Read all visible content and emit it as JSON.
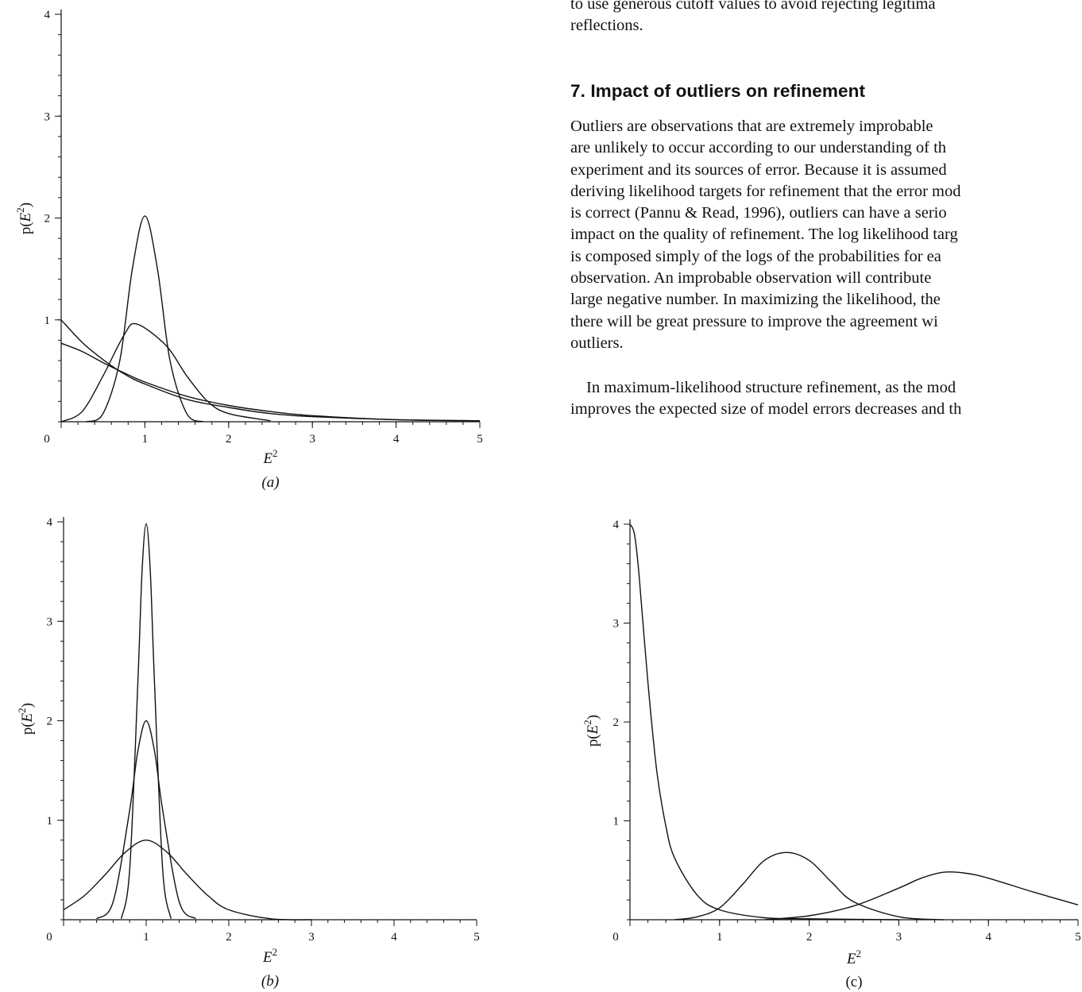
{
  "article": {
    "fragment_lines": [
      "to use generous cutoff values to avoid rejecting legitima",
      "reflections."
    ],
    "section_heading": "7. Impact of outliers on refinement",
    "paragraph1_lines": [
      "Outliers are observations that are extremely improbable",
      "are unlikely to occur according to our understanding of th",
      "experiment and its sources of error. Because it is assumed",
      "deriving likelihood targets for refinement that the error mod",
      "is correct (Pannu & Read, 1996), outliers can have a serio",
      "impact on the quality of refinement. The log likelihood targ",
      "is composed simply of the logs of the probabilities for ea",
      "observation. An improbable observation will contribute",
      "large negative number. In maximizing the likelihood, the",
      "there will be great pressure to improve the agreement wi",
      "outliers."
    ],
    "paragraph2_lines": [
      "In maximum-likelihood structure refinement, as the mod",
      "improves the expected size of model errors decreases and th"
    ]
  },
  "chart_data": [
    {
      "panel": "(a)",
      "type": "line",
      "xlabel": "E²",
      "ylabel": "p(E²)",
      "xlim": [
        0,
        5
      ],
      "ylim": [
        0,
        4
      ],
      "x_ticks": [
        0,
        1,
        2,
        3,
        4,
        5
      ],
      "y_ticks": [
        1,
        2,
        3,
        4
      ],
      "series": [
        {
          "x": [
            0,
            0.25,
            0.5,
            0.75,
            1,
            1.5,
            2,
            2.5,
            3,
            4,
            5
          ],
          "y": [
            1,
            0.78,
            0.61,
            0.47,
            0.37,
            0.22,
            0.14,
            0.08,
            0.05,
            0.02,
            0.01
          ]
        },
        {
          "x": [
            0,
            0.25,
            0.5,
            0.75,
            1,
            1.5,
            2,
            2.5,
            3,
            4,
            5
          ],
          "y": [
            0.77,
            0.69,
            0.58,
            0.48,
            0.39,
            0.25,
            0.16,
            0.1,
            0.06,
            0.02,
            0.01
          ]
        },
        {
          "x": [
            0,
            0.25,
            0.5,
            0.75,
            0.9,
            1.25,
            1.5,
            1.75,
            2,
            2.5
          ],
          "y": [
            0,
            0.1,
            0.45,
            0.85,
            0.96,
            0.75,
            0.45,
            0.2,
            0.08,
            0.01
          ]
        },
        {
          "x": [
            0.3,
            0.5,
            0.7,
            0.85,
            1,
            1.15,
            1.3,
            1.5,
            1.7
          ],
          "y": [
            0,
            0.08,
            0.6,
            1.5,
            2.02,
            1.5,
            0.6,
            0.08,
            0
          ]
        }
      ]
    },
    {
      "panel": "(b)",
      "type": "line",
      "xlabel": "E²",
      "ylabel": "p(E²)",
      "xlim": [
        0,
        5
      ],
      "ylim": [
        0,
        4
      ],
      "x_ticks": [
        0,
        1,
        2,
        3,
        4,
        5
      ],
      "y_ticks": [
        1,
        2,
        3,
        4
      ],
      "series": [
        {
          "x": [
            0,
            0.25,
            0.5,
            0.75,
            1,
            1.25,
            1.5,
            1.75,
            2,
            2.5,
            3
          ],
          "y": [
            0.1,
            0.24,
            0.45,
            0.68,
            0.8,
            0.68,
            0.45,
            0.24,
            0.1,
            0.01,
            0
          ]
        },
        {
          "x": [
            0.4,
            0.6,
            0.8,
            0.9,
            1,
            1.1,
            1.2,
            1.4,
            1.6
          ],
          "y": [
            0.01,
            0.18,
            1.1,
            1.7,
            2,
            1.7,
            1.1,
            0.18,
            0.01
          ]
        },
        {
          "x": [
            0.7,
            0.8,
            0.9,
            0.95,
            1,
            1.05,
            1.1,
            1.2,
            1.3
          ],
          "y": [
            0.01,
            0.5,
            2.4,
            3.5,
            3.98,
            3.5,
            2.4,
            0.5,
            0.01
          ]
        }
      ]
    },
    {
      "panel": "(c)",
      "type": "line",
      "xlabel": "E²",
      "ylabel": "p(E²)",
      "xlim": [
        0,
        5
      ],
      "ylim": [
        0,
        4
      ],
      "x_ticks": [
        0,
        1,
        2,
        3,
        4,
        5
      ],
      "y_ticks": [
        1,
        2,
        3,
        4
      ],
      "series": [
        {
          "x": [
            0,
            0.05,
            0.1,
            0.2,
            0.3,
            0.4,
            0.5,
            0.75,
            1,
            1.5,
            2,
            3
          ],
          "y": [
            4,
            3.9,
            3.5,
            2.4,
            1.5,
            0.95,
            0.62,
            0.25,
            0.1,
            0.02,
            0.01,
            0
          ]
        },
        {
          "x": [
            0.5,
            0.75,
            1,
            1.25,
            1.5,
            1.75,
            2,
            2.25,
            2.5,
            3,
            3.5
          ],
          "y": [
            0,
            0.03,
            0.12,
            0.35,
            0.6,
            0.68,
            0.6,
            0.38,
            0.18,
            0.03,
            0
          ]
        },
        {
          "x": [
            1.5,
            2,
            2.5,
            3,
            3.25,
            3.5,
            3.75,
            4,
            4.5,
            5
          ],
          "y": [
            0,
            0.04,
            0.14,
            0.32,
            0.42,
            0.48,
            0.47,
            0.42,
            0.28,
            0.15
          ]
        }
      ]
    }
  ]
}
